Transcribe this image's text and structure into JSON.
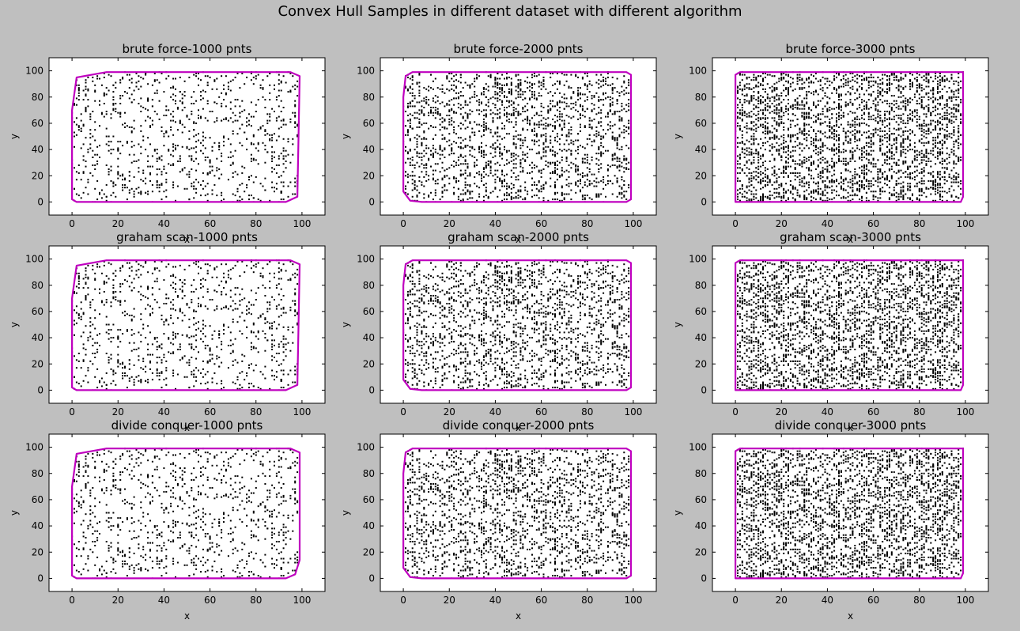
{
  "figure": {
    "title": "Convex Hull Samples in different dataset with different algorithm",
    "background": "#bfbfbf",
    "axes_face": "#ffffff",
    "point_color": "#000000",
    "hull_color": "#bf00bf"
  },
  "chart_data": [
    {
      "type": "scatter",
      "title": "brute force-1000 pnts",
      "algorithm": "brute force",
      "n_points": 1000,
      "xlabel": "x",
      "ylabel": "y",
      "xlim": [
        -10,
        110
      ],
      "ylim": [
        -10,
        110
      ],
      "xticks": [
        0,
        20,
        40,
        60,
        80,
        100
      ],
      "yticks": [
        0,
        20,
        40,
        60,
        80,
        100
      ],
      "x_tick_labels": [
        "0",
        "20",
        "40",
        "60",
        "80",
        "100"
      ],
      "y_tick_labels": [
        "0",
        "20",
        "40",
        "60",
        "80",
        "100"
      ],
      "grid": false,
      "hull": [
        [
          0,
          2
        ],
        [
          2,
          0
        ],
        [
          93,
          0
        ],
        [
          98,
          4
        ],
        [
          99,
          96
        ],
        [
          95,
          99
        ],
        [
          15,
          99
        ],
        [
          2,
          95
        ],
        [
          0,
          70
        ]
      ]
    },
    {
      "type": "scatter",
      "title": "brute force-2000 pnts",
      "algorithm": "brute force",
      "n_points": 2000,
      "xlabel": "x",
      "ylabel": "y",
      "xlim": [
        -10,
        110
      ],
      "ylim": [
        -10,
        110
      ],
      "xticks": [
        0,
        20,
        40,
        60,
        80,
        100
      ],
      "yticks": [
        0,
        20,
        40,
        60,
        80,
        100
      ],
      "x_tick_labels": [
        "0",
        "20",
        "40",
        "60",
        "80",
        "100"
      ],
      "y_tick_labels": [
        "0",
        "20",
        "40",
        "60",
        "80",
        "100"
      ],
      "grid": false,
      "hull": [
        [
          0,
          8
        ],
        [
          3,
          1
        ],
        [
          8,
          0
        ],
        [
          97,
          0
        ],
        [
          99,
          2
        ],
        [
          99,
          97
        ],
        [
          97,
          99
        ],
        [
          4,
          99
        ],
        [
          1,
          96
        ],
        [
          0,
          80
        ]
      ]
    },
    {
      "type": "scatter",
      "title": "brute force-3000 pnts",
      "algorithm": "brute force",
      "n_points": 3000,
      "xlabel": "x",
      "ylabel": "y",
      "xlim": [
        -10,
        110
      ],
      "ylim": [
        -10,
        110
      ],
      "xticks": [
        0,
        20,
        40,
        60,
        80,
        100
      ],
      "yticks": [
        0,
        20,
        40,
        60,
        80,
        100
      ],
      "x_tick_labels": [
        "0",
        "20",
        "40",
        "60",
        "80",
        "100"
      ],
      "y_tick_labels": [
        "0",
        "20",
        "40",
        "60",
        "80",
        "100"
      ],
      "grid": false,
      "hull": [
        [
          0,
          0
        ],
        [
          98,
          0
        ],
        [
          99,
          4
        ],
        [
          99,
          99
        ],
        [
          2,
          99
        ],
        [
          0,
          97
        ]
      ]
    },
    {
      "type": "scatter",
      "title": "graham scan-1000 pnts",
      "algorithm": "graham scan",
      "n_points": 1000,
      "xlabel": "x",
      "ylabel": "y",
      "xlim": [
        -10,
        110
      ],
      "ylim": [
        -10,
        110
      ],
      "xticks": [
        0,
        20,
        40,
        60,
        80,
        100
      ],
      "yticks": [
        0,
        20,
        40,
        60,
        80,
        100
      ],
      "x_tick_labels": [
        "0",
        "20",
        "40",
        "60",
        "80",
        "100"
      ],
      "y_tick_labels": [
        "0",
        "20",
        "40",
        "60",
        "80",
        "100"
      ],
      "grid": false,
      "hull": [
        [
          0,
          2
        ],
        [
          2,
          0
        ],
        [
          93,
          0
        ],
        [
          98,
          4
        ],
        [
          99,
          96
        ],
        [
          95,
          99
        ],
        [
          15,
          99
        ],
        [
          2,
          95
        ],
        [
          0,
          70
        ]
      ]
    },
    {
      "type": "scatter",
      "title": "graham scan-2000 pnts",
      "algorithm": "graham scan",
      "n_points": 2000,
      "xlabel": "x",
      "ylabel": "y",
      "xlim": [
        -10,
        110
      ],
      "ylim": [
        -10,
        110
      ],
      "xticks": [
        0,
        20,
        40,
        60,
        80,
        100
      ],
      "yticks": [
        0,
        20,
        40,
        60,
        80,
        100
      ],
      "x_tick_labels": [
        "0",
        "20",
        "40",
        "60",
        "80",
        "100"
      ],
      "y_tick_labels": [
        "0",
        "20",
        "40",
        "60",
        "80",
        "100"
      ],
      "grid": false,
      "hull": [
        [
          0,
          8
        ],
        [
          3,
          1
        ],
        [
          8,
          0
        ],
        [
          97,
          0
        ],
        [
          99,
          2
        ],
        [
          99,
          97
        ],
        [
          97,
          99
        ],
        [
          4,
          99
        ],
        [
          1,
          96
        ],
        [
          0,
          80
        ]
      ]
    },
    {
      "type": "scatter",
      "title": "graham scan-3000 pnts",
      "algorithm": "graham scan",
      "n_points": 3000,
      "xlabel": "x",
      "ylabel": "y",
      "xlim": [
        -10,
        110
      ],
      "ylim": [
        -10,
        110
      ],
      "xticks": [
        0,
        20,
        40,
        60,
        80,
        100
      ],
      "yticks": [
        0,
        20,
        40,
        60,
        80,
        100
      ],
      "x_tick_labels": [
        "0",
        "20",
        "40",
        "60",
        "80",
        "100"
      ],
      "y_tick_labels": [
        "0",
        "20",
        "40",
        "60",
        "80",
        "100"
      ],
      "grid": false,
      "hull": [
        [
          0,
          0
        ],
        [
          98,
          0
        ],
        [
          99,
          4
        ],
        [
          99,
          99
        ],
        [
          2,
          99
        ],
        [
          0,
          97
        ]
      ]
    },
    {
      "type": "scatter",
      "title": "divide conquer-1000 pnts",
      "algorithm": "divide conquer",
      "n_points": 1000,
      "xlabel": "x",
      "ylabel": "y",
      "xlim": [
        -10,
        110
      ],
      "ylim": [
        -10,
        110
      ],
      "xticks": [
        0,
        20,
        40,
        60,
        80,
        100
      ],
      "yticks": [
        0,
        20,
        40,
        60,
        80,
        100
      ],
      "x_tick_labels": [
        "0",
        "20",
        "40",
        "60",
        "80",
        "100"
      ],
      "y_tick_labels": [
        "0",
        "20",
        "40",
        "60",
        "80",
        "100"
      ],
      "grid": false,
      "hull": [
        [
          0,
          2
        ],
        [
          2,
          0
        ],
        [
          93,
          0
        ],
        [
          97,
          3
        ],
        [
          99,
          14
        ],
        [
          99,
          96
        ],
        [
          95,
          99
        ],
        [
          15,
          99
        ],
        [
          2,
          95
        ],
        [
          0,
          70
        ]
      ]
    },
    {
      "type": "scatter",
      "title": "divide conquer-2000 pnts",
      "algorithm": "divide conquer",
      "n_points": 2000,
      "xlabel": "x",
      "ylabel": "y",
      "xlim": [
        -10,
        110
      ],
      "ylim": [
        -10,
        110
      ],
      "xticks": [
        0,
        20,
        40,
        60,
        80,
        100
      ],
      "yticks": [
        0,
        20,
        40,
        60,
        80,
        100
      ],
      "x_tick_labels": [
        "0",
        "20",
        "40",
        "60",
        "80",
        "100"
      ],
      "y_tick_labels": [
        "0",
        "20",
        "40",
        "60",
        "80",
        "100"
      ],
      "grid": false,
      "hull": [
        [
          0,
          8
        ],
        [
          3,
          1
        ],
        [
          8,
          0
        ],
        [
          97,
          0
        ],
        [
          99,
          2
        ],
        [
          99,
          97
        ],
        [
          97,
          99
        ],
        [
          4,
          99
        ],
        [
          1,
          96
        ],
        [
          0,
          80
        ]
      ]
    },
    {
      "type": "scatter",
      "title": "divide conquer-3000 pnts",
      "algorithm": "divide conquer",
      "n_points": 3000,
      "xlabel": "x",
      "ylabel": "y",
      "xlim": [
        -10,
        110
      ],
      "ylim": [
        -10,
        110
      ],
      "xticks": [
        0,
        20,
        40,
        60,
        80,
        100
      ],
      "yticks": [
        0,
        20,
        40,
        60,
        80,
        100
      ],
      "x_tick_labels": [
        "0",
        "20",
        "40",
        "60",
        "80",
        "100"
      ],
      "y_tick_labels": [
        "0",
        "20",
        "40",
        "60",
        "80",
        "100"
      ],
      "grid": false,
      "hull": [
        [
          0,
          0
        ],
        [
          98,
          0
        ],
        [
          99,
          4
        ],
        [
          99,
          99
        ],
        [
          2,
          99
        ],
        [
          0,
          97
        ]
      ]
    }
  ]
}
